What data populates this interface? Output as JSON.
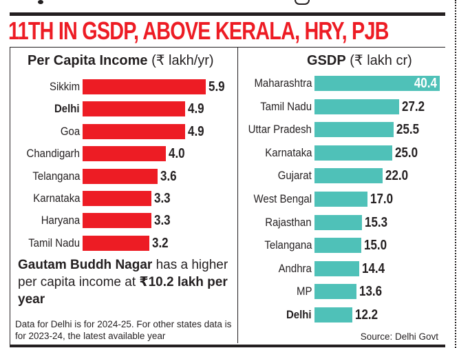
{
  "headline": "11TH IN GSDP, ABOVE KERALA, HRY, PJB",
  "colors": {
    "headline": "#ed1c24",
    "pci_bar": "#ed1c24",
    "gsdp_bar": "#4fc1b8",
    "text": "#231f20"
  },
  "chart_data": [
    {
      "type": "bar",
      "orientation": "horizontal",
      "title_bold": "Per Capita Income",
      "title_unit": "(₹ lakh/yr)",
      "categories": [
        "Sikkim",
        "Delhi",
        "Goa",
        "Chandigarh",
        "Telangana",
        "Karnataka",
        "Haryana",
        "Tamil Nadu"
      ],
      "values": [
        5.9,
        4.9,
        4.9,
        4.0,
        3.6,
        3.3,
        3.3,
        3.2
      ],
      "value_labels": [
        "5.9",
        "4.9",
        "4.9",
        "4.0",
        "3.6",
        "3.3",
        "3.3",
        "3.2"
      ],
      "highlighted": [
        "Delhi"
      ],
      "xlim": [
        0,
        5.9
      ]
    },
    {
      "type": "bar",
      "orientation": "horizontal",
      "title_bold": "GSDP",
      "title_unit": "(₹ lakh cr)",
      "categories": [
        "Maharashtra",
        "Tamil Nadu",
        "Uttar Pradesh",
        "Karnataka",
        "Gujarat",
        "West Bengal",
        "Rajasthan",
        "Telangana",
        "Andhra",
        "MP",
        "Delhi"
      ],
      "values": [
        40.4,
        27.2,
        25.5,
        25.0,
        22.0,
        17.0,
        15.3,
        15.0,
        14.4,
        13.6,
        12.2
      ],
      "value_labels": [
        "40.4",
        "27.2",
        "25.5",
        "25.0",
        "22.0",
        "17.0",
        "15.3",
        "15.0",
        "14.4",
        "13.6",
        "12.2"
      ],
      "highlighted": [
        "Delhi"
      ],
      "xlim": [
        0,
        40.4
      ]
    }
  ],
  "note": {
    "bold_part": "Gautam Buddh Nagar",
    "middle": " has a higher per capita income at ",
    "bold_end": "₹10.2 lakh per year"
  },
  "footnote": "Data for Delhi is for 2024-25. For other states data is for 2023-24, the latest available year",
  "source": "Source: Delhi Govt"
}
